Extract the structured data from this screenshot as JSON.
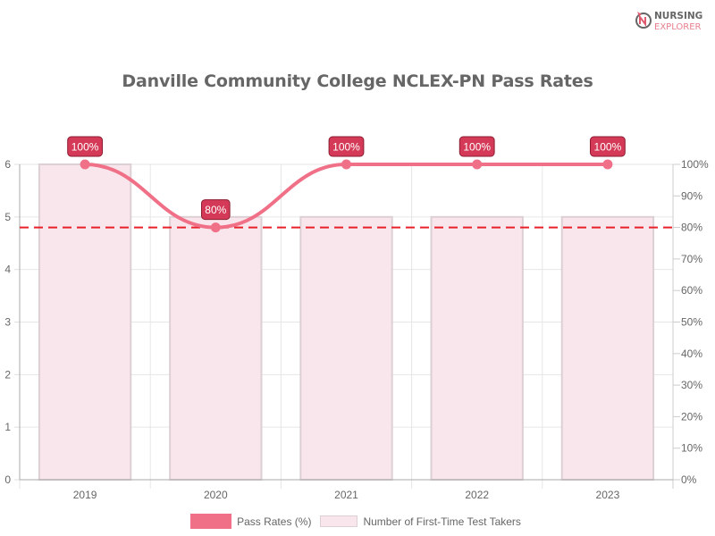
{
  "logo": {
    "line1": "NURSING",
    "line2": "EXPLORER",
    "icon": "nursing-explorer-logo-icon"
  },
  "chart_data": {
    "type": "bar+line",
    "title": "Danville Community College NCLEX-PN Pass Rates",
    "categories": [
      "2019",
      "2020",
      "2021",
      "2022",
      "2023"
    ],
    "series": [
      {
        "name": "Pass Rates (%)",
        "type": "line",
        "axis": "right",
        "values": [
          100,
          80,
          100,
          100,
          100
        ],
        "labels": [
          "100%",
          "80%",
          "100%",
          "100%",
          "100%"
        ],
        "color": "#f07087"
      },
      {
        "name": "Number of First-Time Test Takers",
        "type": "bar",
        "axis": "left",
        "values": [
          6,
          5,
          5,
          5,
          5
        ],
        "color": "#f9e6ec"
      }
    ],
    "reference_line": {
      "value": 80,
      "axis": "right",
      "style": "dashed",
      "color": "#e8202a"
    },
    "left_axis": {
      "ticks": [
        "0",
        "1",
        "2",
        "3",
        "4",
        "5",
        "6"
      ],
      "ylim": [
        0,
        6
      ]
    },
    "right_axis": {
      "ticks": [
        "0%",
        "10%",
        "20%",
        "30%",
        "40%",
        "50%",
        "60%",
        "70%",
        "80%",
        "90%",
        "100%"
      ],
      "ylim": [
        0,
        100
      ]
    },
    "xlabel": "",
    "ylabel": "",
    "grid": true,
    "legend_position": "bottom"
  },
  "legend": {
    "line_label": "Pass Rates (%)",
    "bar_label": "Number of First-Time Test Takers"
  }
}
